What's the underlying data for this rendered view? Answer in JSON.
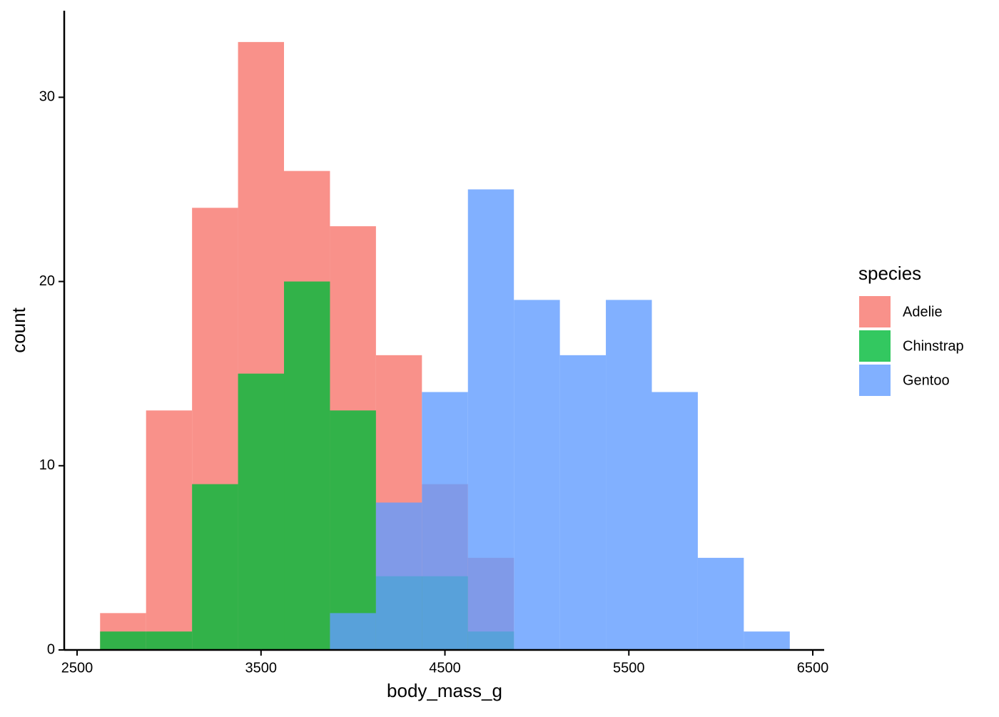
{
  "chart_data": {
    "type": "histogram",
    "x_label": "body_mass_g",
    "y_label": "count",
    "legend_title": "species",
    "bins": [
      2625,
      2875,
      3125,
      3375,
      3625,
      3875,
      4125,
      4375,
      4625,
      4875,
      5125,
      5375,
      5625,
      5875,
      6125,
      6375
    ],
    "series": [
      {
        "name": "Adelie",
        "color": "#F8766D",
        "values": [
          2,
          13,
          24,
          33,
          26,
          23,
          16,
          9,
          5,
          0,
          0,
          0,
          0,
          0,
          0
        ]
      },
      {
        "name": "Chinstrap",
        "color": "#00BA38",
        "values": [
          1,
          1,
          9,
          15,
          20,
          13,
          4,
          4,
          1,
          0,
          0,
          0,
          0,
          0,
          0
        ]
      },
      {
        "name": "Gentoo",
        "color": "#619CFF",
        "values": [
          0,
          0,
          0,
          0,
          0,
          2,
          8,
          14,
          25,
          19,
          16,
          19,
          14,
          5,
          1
        ]
      }
    ],
    "xlim": [
      2430,
      6562
    ],
    "ylim": [
      0,
      34.7
    ],
    "xticks": [
      2500,
      3500,
      4500,
      5500,
      6500
    ],
    "yticks": [
      0,
      10,
      20,
      30
    ],
    "grid": false,
    "legend_position": "right"
  }
}
